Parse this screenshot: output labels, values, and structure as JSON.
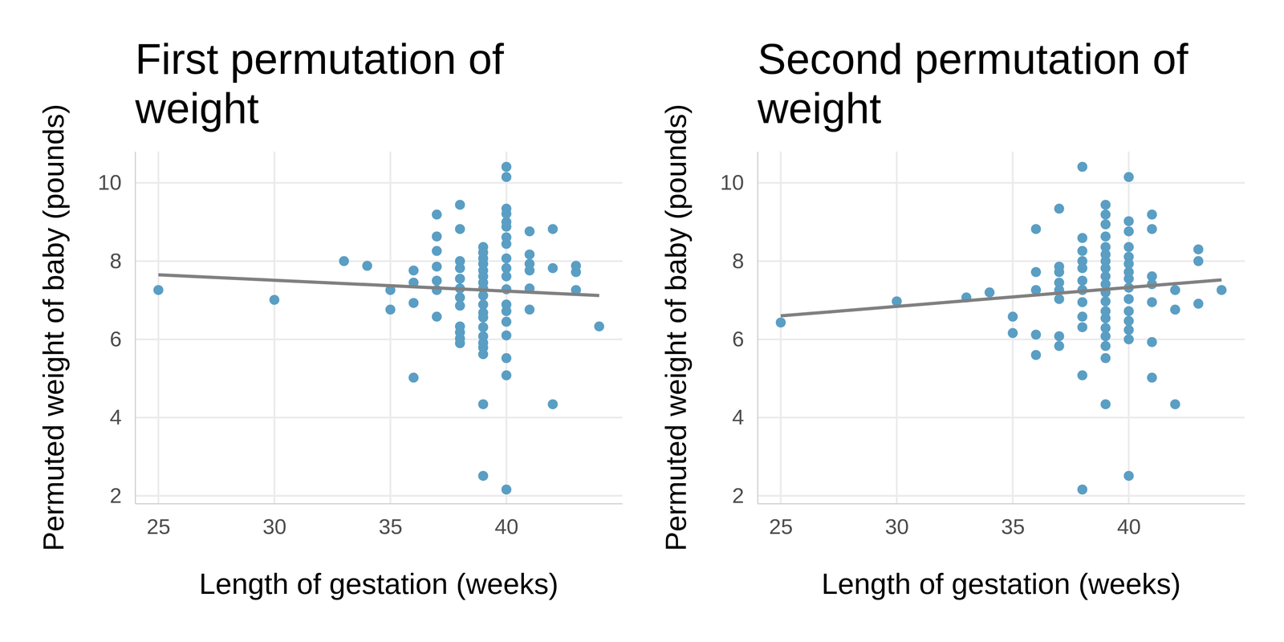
{
  "chart_data": [
    {
      "type": "scatter",
      "title": "First permutation of\nweight",
      "x_label": "Length of gestation (weeks)",
      "y_label": "Permuted weight of baby (pounds)",
      "color": "#5a9ec4",
      "grid": true,
      "xlim": [
        24,
        45
      ],
      "ylim": [
        1.8,
        10.8
      ],
      "xticks": [
        25,
        30,
        35,
        40
      ],
      "yticks": [
        2,
        4,
        6,
        8,
        10
      ],
      "x": [
        25,
        30,
        33,
        34,
        35,
        35,
        36,
        36,
        36,
        36,
        37,
        37,
        37,
        37,
        37,
        37,
        37,
        38,
        38,
        38,
        38,
        38,
        38,
        38,
        38,
        38,
        38,
        38,
        38,
        39,
        39,
        39,
        39,
        39,
        39,
        39,
        39,
        39,
        39,
        39,
        39,
        39,
        39,
        39,
        39,
        39,
        39,
        39,
        40,
        40,
        40,
        40,
        40,
        40,
        40,
        40,
        40,
        40,
        40,
        40,
        40,
        40,
        40,
        40,
        40,
        40,
        40,
        41,
        41,
        41,
        41,
        41,
        41,
        42,
        42,
        42,
        43,
        43,
        43,
        44
      ],
      "values": [
        7.26,
        7.01,
        8.0,
        7.88,
        7.26,
        6.76,
        7.76,
        7.45,
        6.93,
        5.02,
        9.19,
        8.63,
        8.26,
        7.86,
        7.5,
        7.26,
        6.58,
        9.44,
        8.82,
        8.0,
        7.82,
        7.55,
        7.3,
        7.07,
        6.86,
        6.33,
        6.18,
        6.02,
        5.9,
        8.36,
        8.22,
        8.07,
        7.93,
        7.76,
        7.61,
        7.45,
        7.3,
        7.12,
        6.89,
        6.68,
        6.56,
        6.31,
        6.08,
        5.91,
        5.79,
        5.62,
        4.34,
        2.51,
        10.41,
        10.15,
        9.34,
        9.21,
        9.0,
        8.88,
        8.61,
        8.44,
        8.07,
        7.82,
        7.61,
        7.28,
        6.89,
        6.72,
        6.45,
        6.1,
        5.52,
        5.08,
        2.16,
        8.76,
        8.17,
        7.93,
        7.76,
        7.3,
        6.76,
        8.82,
        7.82,
        4.34,
        7.88,
        7.72,
        7.26,
        6.33
      ],
      "fit": {
        "color": "#808080",
        "x": [
          25,
          44
        ],
        "y": [
          7.65,
          7.12
        ]
      }
    },
    {
      "type": "scatter",
      "title": "Second permutation of\nweight",
      "x_label": "Length of gestation (weeks)",
      "y_label": "Permuted weight of baby (pounds)",
      "color": "#5a9ec4",
      "grid": true,
      "xlim": [
        24,
        45
      ],
      "ylim": [
        1.8,
        10.8
      ],
      "xticks": [
        25,
        30,
        35,
        40
      ],
      "yticks": [
        2,
        4,
        6,
        8,
        10
      ],
      "x": [
        25,
        30,
        33,
        34,
        35,
        35,
        36,
        36,
        36,
        36,
        36,
        37,
        37,
        37,
        37,
        37,
        37,
        37,
        37,
        38,
        38,
        38,
        38,
        38,
        38,
        38,
        38,
        38,
        38,
        38,
        38,
        39,
        39,
        39,
        39,
        39,
        39,
        39,
        39,
        39,
        39,
        39,
        39,
        39,
        39,
        39,
        39,
        39,
        39,
        39,
        40,
        40,
        40,
        40,
        40,
        40,
        40,
        40,
        40,
        40,
        40,
        40,
        40,
        40,
        40,
        41,
        41,
        41,
        41,
        41,
        41,
        41,
        42,
        42,
        42,
        43,
        43,
        43,
        44
      ],
      "values": [
        6.43,
        6.97,
        7.07,
        7.2,
        6.58,
        6.16,
        8.82,
        7.72,
        7.26,
        6.12,
        5.6,
        9.34,
        7.86,
        7.72,
        7.45,
        7.26,
        7.03,
        6.08,
        5.83,
        10.41,
        8.59,
        8.26,
        8.0,
        7.82,
        7.5,
        7.26,
        6.95,
        6.58,
        6.31,
        5.08,
        2.16,
        9.44,
        9.19,
        8.94,
        8.63,
        8.36,
        8.17,
        8.0,
        7.82,
        7.61,
        7.41,
        7.2,
        6.97,
        6.72,
        6.54,
        6.29,
        6.08,
        5.83,
        5.52,
        4.34,
        10.15,
        9.02,
        8.76,
        8.36,
        8.11,
        7.93,
        7.72,
        7.55,
        7.32,
        7.03,
        6.72,
        6.47,
        6.24,
        6.0,
        2.51,
        9.19,
        8.82,
        7.61,
        7.41,
        6.95,
        5.93,
        5.02,
        7.26,
        6.76,
        4.34,
        8.3,
        8.0,
        6.91,
        7.26
      ],
      "fit": {
        "color": "#808080",
        "x": [
          25,
          44
        ],
        "y": [
          6.6,
          7.52
        ]
      }
    }
  ]
}
